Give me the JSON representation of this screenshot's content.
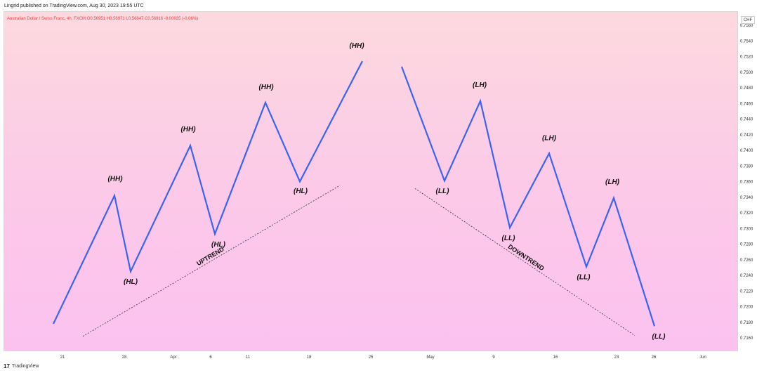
{
  "header": {
    "published_text": "Lingrid published on TradingView.com, Aug 30, 2023 19:55 UTC"
  },
  "symbol_info": "Australian Dollar / Swiss Franc, 4h, FXCM  O0.56951  H0.56971  L0.56847  C0.56916  -0.00035 (-0.06%)",
  "currency_badge": "CHF",
  "footer": {
    "brand": "TradingView",
    "logo_glyph": "17"
  },
  "colors": {
    "line": "#3d63f5",
    "label": "#111111",
    "bg_top": "#fdd9df",
    "bg_bottom": "#fbc2f0",
    "symbol_text": "#ff3b3b"
  },
  "chart_data": {
    "type": "line",
    "ylim": [
      0.7143,
      0.7578
    ],
    "y_ticks": [
      0.756,
      0.754,
      0.752,
      0.75,
      0.748,
      0.746,
      0.744,
      0.742,
      0.74,
      0.738,
      0.736,
      0.734,
      0.732,
      0.73,
      0.728,
      0.726,
      0.724,
      0.722,
      0.72,
      0.718,
      0.716
    ],
    "y_tick_labels": [
      "0.7560",
      "0.7540",
      "0.7520",
      "0.7500",
      "0.7480",
      "0.7460",
      "0.7440",
      "0.7420",
      "0.7400",
      "0.7380",
      "0.7360",
      "0.7340",
      "0.7320",
      "0.7300",
      "0.7280",
      "0.7260",
      "0.7240",
      "0.7220",
      "0.7200",
      "0.7180",
      "0.7160"
    ],
    "xlim": [
      0,
      1046
    ],
    "x_ticks": [
      {
        "x": 84,
        "label": "21"
      },
      {
        "x": 172,
        "label": "28"
      },
      {
        "x": 242,
        "label": "Apr"
      },
      {
        "x": 295,
        "label": "6"
      },
      {
        "x": 348,
        "label": "11"
      },
      {
        "x": 435,
        "label": "18"
      },
      {
        "x": 523,
        "label": "25"
      },
      {
        "x": 608,
        "label": "May"
      },
      {
        "x": 698,
        "label": "9"
      },
      {
        "x": 786,
        "label": "16"
      },
      {
        "x": 873,
        "label": "23"
      },
      {
        "x": 926,
        "label": "26"
      },
      {
        "x": 996,
        "label": "Jun"
      }
    ],
    "series": [
      {
        "points": [
          [
            70,
            0.7179
          ],
          [
            157,
            0.7343
          ],
          [
            180,
            0.7246
          ],
          [
            265,
            0.7407
          ],
          [
            300,
            0.7294
          ],
          [
            372,
            0.7462
          ],
          [
            421,
            0.7361
          ],
          [
            510,
            0.7515
          ]
        ]
      },
      {
        "points": [
          [
            566,
            0.7508
          ],
          [
            627,
            0.7362
          ],
          [
            678,
            0.7464
          ],
          [
            720,
            0.7302
          ],
          [
            776,
            0.7397
          ],
          [
            829,
            0.7252
          ],
          [
            868,
            0.734
          ],
          [
            926,
            0.7176
          ]
        ]
      }
    ],
    "annotations": [
      {
        "text": "(HH)",
        "x": 158,
        "y": 0.7362
      },
      {
        "text": "(HL)",
        "x": 180,
        "y": 0.723
      },
      {
        "text": "(HH)",
        "x": 262,
        "y": 0.7425
      },
      {
        "text": "(HL)",
        "x": 305,
        "y": 0.7278
      },
      {
        "text": "(HH)",
        "x": 373,
        "y": 0.7479
      },
      {
        "text": "(HL)",
        "x": 422,
        "y": 0.7346
      },
      {
        "text": "(HH)",
        "x": 502,
        "y": 0.7532
      },
      {
        "text": "(LL)",
        "x": 624,
        "y": 0.7346
      },
      {
        "text": "(LH)",
        "x": 677,
        "y": 0.7482
      },
      {
        "text": "(LL)",
        "x": 718,
        "y": 0.7286
      },
      {
        "text": "(LH)",
        "x": 776,
        "y": 0.7414
      },
      {
        "text": "(LL)",
        "x": 825,
        "y": 0.7236
      },
      {
        "text": "(LH)",
        "x": 866,
        "y": 0.7358
      },
      {
        "text": "(LL)",
        "x": 932,
        "y": 0.716
      }
    ],
    "trendlines": [
      {
        "name": "UPTREND",
        "from": [
          112,
          0.7163
        ],
        "to": [
          478,
          0.7356
        ]
      },
      {
        "name": "DOWNTREND",
        "from": [
          585,
          0.7352
        ],
        "to": [
          898,
          0.7164
        ]
      }
    ]
  }
}
